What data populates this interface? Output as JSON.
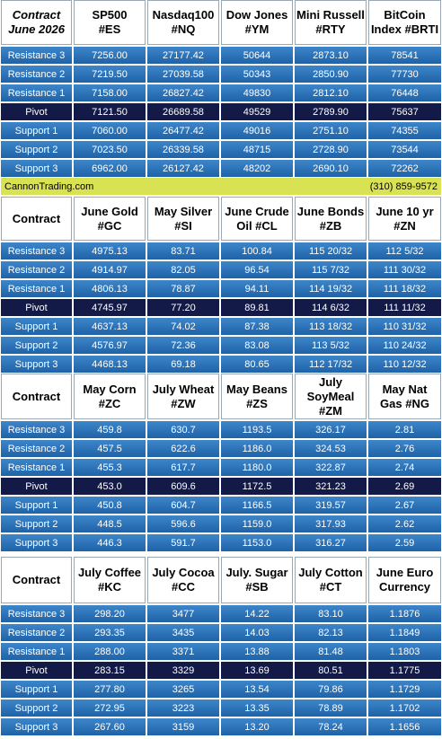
{
  "sections": [
    {
      "headers": [
        {
          "line1": "Contract",
          "line2": "June 2026"
        },
        {
          "line1": "SP500",
          "line2": "#ES"
        },
        {
          "line1": "Nasdaq100",
          "line2": "#NQ"
        },
        {
          "line1": "Dow Jones",
          "line2": "#YM"
        },
        {
          "line1": "Mini Russell",
          "line2": "#RTY"
        },
        {
          "line1": "BitCoin",
          "line2": "Index #BRTI"
        }
      ],
      "rows": [
        {
          "label": "Resistance 3",
          "values": [
            "7256.00",
            "27177.42",
            "50644",
            "2873.10",
            "78541"
          ]
        },
        {
          "label": "Resistance 2",
          "values": [
            "7219.50",
            "27039.58",
            "50343",
            "2850.90",
            "77730"
          ]
        },
        {
          "label": "Resistance 1",
          "values": [
            "7158.00",
            "26827.42",
            "49830",
            "2812.10",
            "76448"
          ]
        },
        {
          "label": "Pivot",
          "values": [
            "7121.50",
            "26689.58",
            "49529",
            "2789.90",
            "75637"
          ]
        },
        {
          "label": "Support 1",
          "values": [
            "7060.00",
            "26477.42",
            "49016",
            "2751.10",
            "74355"
          ]
        },
        {
          "label": "Support 2",
          "values": [
            "7023.50",
            "26339.58",
            "48715",
            "2728.90",
            "73544"
          ]
        },
        {
          "label": "Support 3",
          "values": [
            "6962.00",
            "26127.42",
            "48202",
            "2690.10",
            "72262"
          ]
        }
      ]
    },
    {
      "headers": [
        {
          "line1": "Contract",
          "line2": ""
        },
        {
          "line1": "June Gold",
          "line2": "#GC"
        },
        {
          "line1": "May Silver",
          "line2": "#SI"
        },
        {
          "line1": "June Crude",
          "line2": "Oil #CL"
        },
        {
          "line1": "June Bonds",
          "line2": "#ZB"
        },
        {
          "line1": "June 10 yr",
          "line2": "#ZN"
        }
      ],
      "rows": [
        {
          "label": "Resistance 3",
          "values": [
            "4975.13",
            "83.71",
            "100.84",
            "115 20/32",
            "112  5/32"
          ]
        },
        {
          "label": "Resistance 2",
          "values": [
            "4914.97",
            "82.05",
            "96.54",
            "115  7/32",
            "111 30/32"
          ]
        },
        {
          "label": "Resistance 1",
          "values": [
            "4806.13",
            "78.87",
            "94.11",
            "114 19/32",
            "111 18/32"
          ]
        },
        {
          "label": "Pivot",
          "values": [
            "4745.97",
            "77.20",
            "89.81",
            "114  6/32",
            "111 11/32"
          ]
        },
        {
          "label": "Support 1",
          "values": [
            "4637.13",
            "74.02",
            "87.38",
            "113 18/32",
            "110 31/32"
          ]
        },
        {
          "label": "Support 2",
          "values": [
            "4576.97",
            "72.36",
            "83.08",
            "113  5/32",
            "110 24/32"
          ]
        },
        {
          "label": "Support 3",
          "values": [
            "4468.13",
            "69.18",
            "80.65",
            "112 17/32",
            "110 12/32"
          ]
        }
      ]
    },
    {
      "headers": [
        {
          "line1": "Contract",
          "line2": ""
        },
        {
          "line1": "May Corn",
          "line2": "#ZC"
        },
        {
          "line1": "July  Wheat",
          "line2": "#ZW"
        },
        {
          "line1": "May Beans",
          "line2": "#ZS"
        },
        {
          "line1": "July",
          "line2": "SoyMeal",
          "line3": "#ZM"
        },
        {
          "line1": "May Nat",
          "line2": "Gas #NG"
        }
      ],
      "rows": [
        {
          "label": "Resistance 3",
          "values": [
            "459.8",
            "630.7",
            "1193.5",
            "326.17",
            "2.81"
          ]
        },
        {
          "label": "Resistance 2",
          "values": [
            "457.5",
            "622.6",
            "1186.0",
            "324.53",
            "2.76"
          ]
        },
        {
          "label": "Resistance 1",
          "values": [
            "455.3",
            "617.7",
            "1180.0",
            "322.87",
            "2.74"
          ]
        },
        {
          "label": "Pivot",
          "values": [
            "453.0",
            "609.6",
            "1172.5",
            "321.23",
            "2.69"
          ]
        },
        {
          "label": "Support 1",
          "values": [
            "450.8",
            "604.7",
            "1166.5",
            "319.57",
            "2.67"
          ]
        },
        {
          "label": "Support 2",
          "values": [
            "448.5",
            "596.6",
            "1159.0",
            "317.93",
            "2.62"
          ]
        },
        {
          "label": "Support 3",
          "values": [
            "446.3",
            "591.7",
            "1153.0",
            "316.27",
            "2.59"
          ]
        }
      ]
    },
    {
      "headers": [
        {
          "line1": "Contract",
          "line2": ""
        },
        {
          "line1": "July Coffee",
          "line2": "#KC"
        },
        {
          "line1": "July Cocoa",
          "line2": "#CC"
        },
        {
          "line1": "July. Sugar",
          "line2": "#SB"
        },
        {
          "line1": "July Cotton",
          "line2": "#CT"
        },
        {
          "line1": "June Euro",
          "line2": "Currency"
        }
      ],
      "rows": [
        {
          "label": "Resistance 3",
          "values": [
            "298.20",
            "3477",
            "14.22",
            "83.10",
            "1.1876"
          ]
        },
        {
          "label": "Resistance 2",
          "values": [
            "293.35",
            "3435",
            "14.03",
            "82.13",
            "1.1849"
          ]
        },
        {
          "label": "Resistance 1",
          "values": [
            "288.00",
            "3371",
            "13.88",
            "81.48",
            "1.1803"
          ]
        },
        {
          "label": "Pivot",
          "values": [
            "283.15",
            "3329",
            "13.69",
            "80.51",
            "1.1775"
          ]
        },
        {
          "label": "Support 1",
          "values": [
            "277.80",
            "3265",
            "13.54",
            "79.86",
            "1.1729"
          ]
        },
        {
          "label": "Support 2",
          "values": [
            "272.95",
            "3223",
            "13.35",
            "78.89",
            "1.1702"
          ]
        },
        {
          "label": "Support 3",
          "values": [
            "267.60",
            "3159",
            "13.20",
            "78.24",
            "1.1656"
          ]
        }
      ]
    }
  ],
  "banner": {
    "left": "CannonTrading.com",
    "right": "(310) 859-9572"
  },
  "colors": {
    "cell_blue": "#2f74bb",
    "pivot_navy": "#131a48",
    "banner_yellow": "#d8e253"
  }
}
